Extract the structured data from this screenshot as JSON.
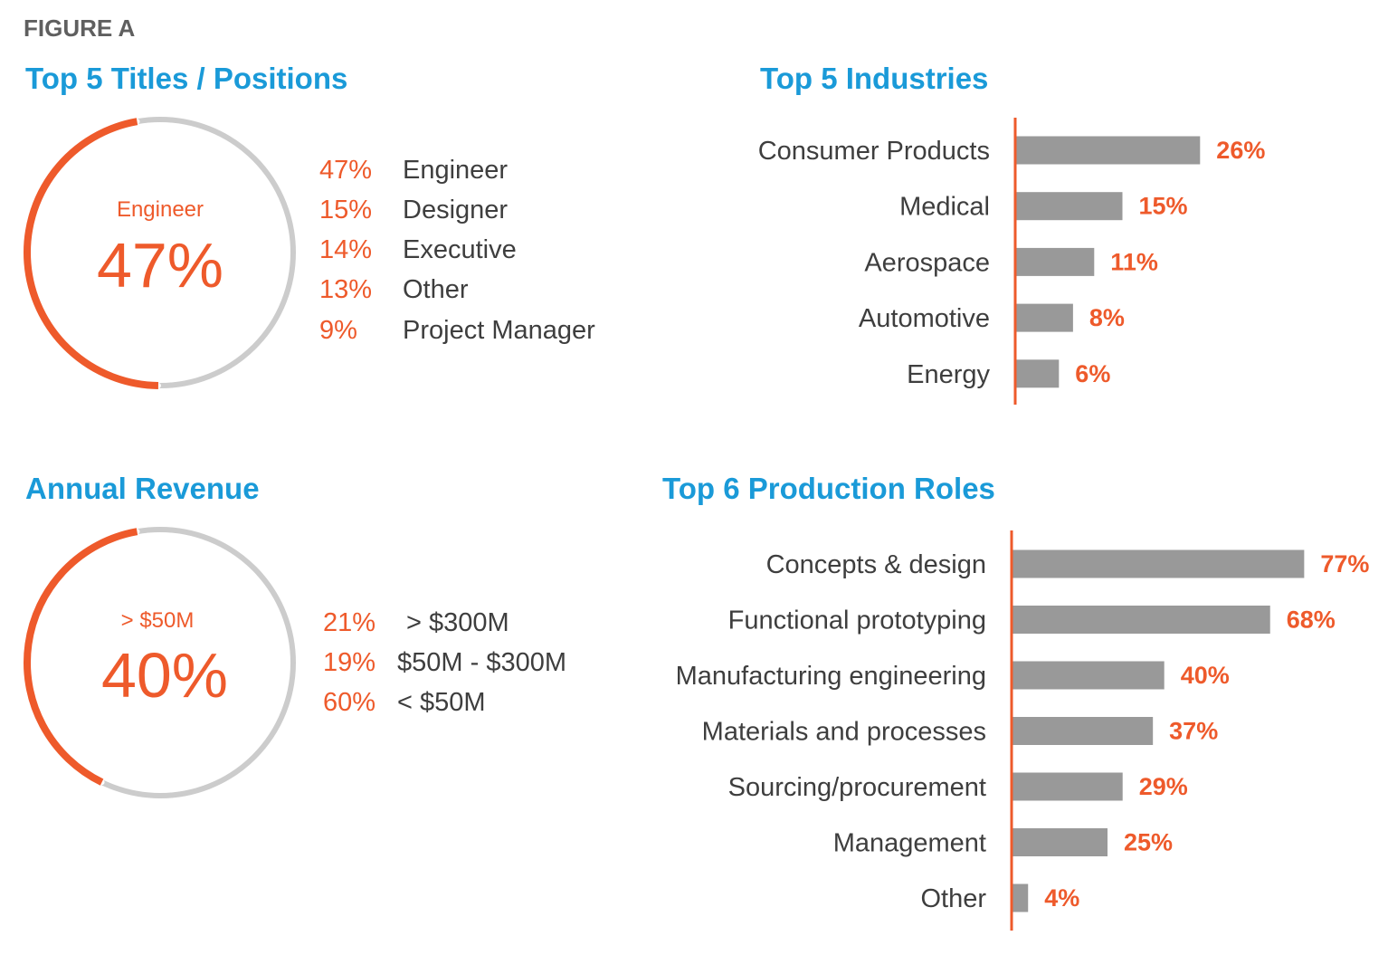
{
  "figure_label": "FIGURE A",
  "colors": {
    "accent": "#ee5a2b",
    "title": "#1a9ad8",
    "bar": "#999999",
    "ring_bg": "#cccccc",
    "text": "#3e3e3e"
  },
  "chart_data": [
    {
      "type": "pie",
      "title": "Top 5 Titles / Positions",
      "center_label": "Engineer",
      "center_value": "47%",
      "highlight_fraction": 0.47,
      "legend": [
        {
          "pct": "47%",
          "label": "Engineer"
        },
        {
          "pct": "15%",
          "label": "Designer"
        },
        {
          "pct": "14%",
          "label": "Executive"
        },
        {
          "pct": "13%",
          "label": "Other"
        },
        {
          "pct": "9%",
          "label": "Project Manager"
        }
      ]
    },
    {
      "type": "bar",
      "title": "Top 5 Industries",
      "categories": [
        "Consumer Products",
        "Medical",
        "Aerospace",
        "Automotive",
        "Energy"
      ],
      "values": [
        26,
        15,
        11,
        8,
        6
      ],
      "value_labels": [
        "26%",
        "15%",
        "11%",
        "8%",
        "6%"
      ]
    },
    {
      "type": "pie",
      "title": "Annual Revenue",
      "center_label": "> $50M",
      "center_value": "40%",
      "highlight_fraction": 0.4,
      "legend": [
        {
          "pct": "21%",
          "label": "> $300M"
        },
        {
          "pct": "19%",
          "label": "$50M - $300M"
        },
        {
          "pct": "60%",
          "label": "< $50M"
        }
      ]
    },
    {
      "type": "bar",
      "title": "Top 6 Production Roles",
      "categories": [
        "Concepts & design",
        "Functional prototyping",
        "Manufacturing engineering",
        "Materials and processes",
        "Sourcing/procurement",
        "Management",
        "Other"
      ],
      "values": [
        77,
        68,
        40,
        37,
        29,
        25,
        4
      ],
      "value_labels": [
        "77%",
        "68%",
        "40%",
        "37%",
        "29%",
        "25%",
        "4%"
      ]
    }
  ]
}
